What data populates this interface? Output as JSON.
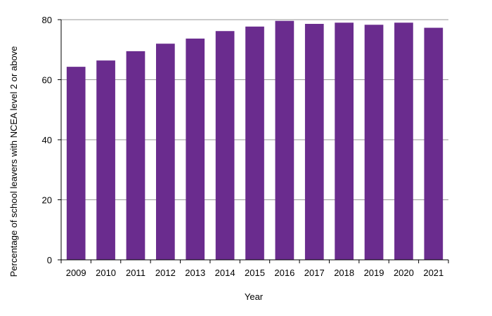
{
  "chart_data": {
    "type": "bar",
    "categories": [
      "2009",
      "2010",
      "2011",
      "2012",
      "2013",
      "2014",
      "2015",
      "2016",
      "2017",
      "2018",
      "2019",
      "2020",
      "2021"
    ],
    "values": [
      64.3,
      66.4,
      69.5,
      72.0,
      73.7,
      76.2,
      77.7,
      79.6,
      78.6,
      79.0,
      78.3,
      79.0,
      77.3
    ],
    "xlabel": "Year",
    "ylabel": "Percentage of school leavers with NCEA level 2 or above",
    "ylim": [
      0,
      80
    ],
    "yticks": [
      0,
      20,
      40,
      60,
      80
    ],
    "grid": true,
    "bar_color": "#6a2c8e",
    "grid_color": "#9a9a9a"
  }
}
